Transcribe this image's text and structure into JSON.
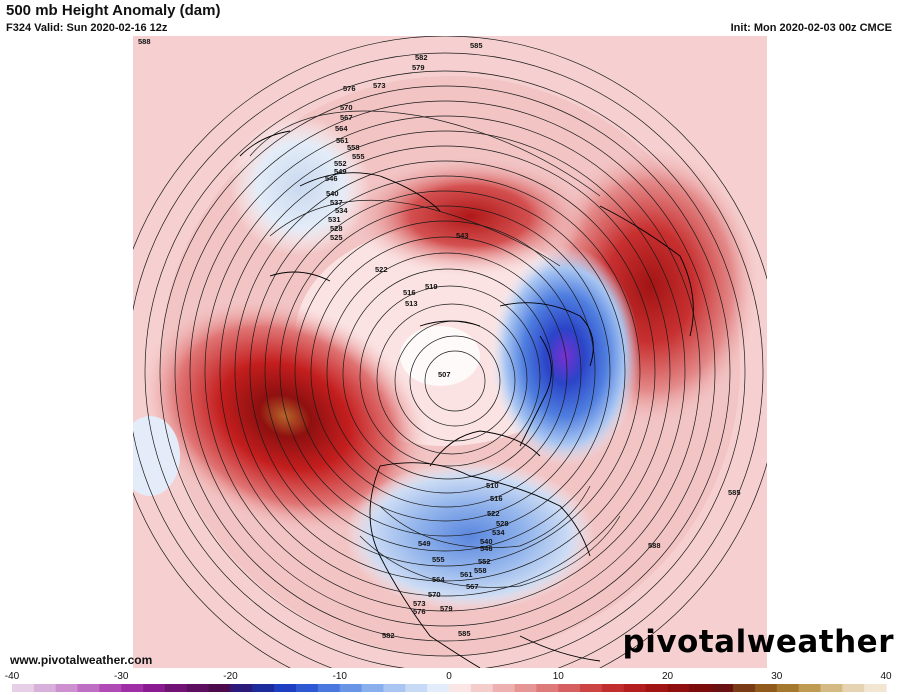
{
  "header": {
    "title": "500 mb Height Anomaly (dam)",
    "valid": "F324 Valid: Sun 2020-02-16 12z",
    "init": "Init: Mon 2020-02-03 00z CMCE"
  },
  "footer": {
    "url": "www.pivotalweather.com",
    "brand": "pivotalweather"
  },
  "colors": {
    "background_positive": "#f7d3d3",
    "strong_positive": "#c41e1e",
    "peak_positive": "#b5652a",
    "negative_light": "#c8d8ec",
    "negative_strong": "#1f3fc2",
    "negative_peak": "#7a2fd0"
  },
  "contour_labels": [
    "588",
    "585",
    "582",
    "579",
    "576",
    "573",
    "570",
    "567",
    "564",
    "561",
    "558",
    "555",
    "552",
    "549",
    "546",
    "540",
    "537",
    "534",
    "531",
    "528",
    "525",
    "522",
    "543",
    "519",
    "516",
    "513",
    "507",
    "510",
    "585",
    "588",
    "579",
    "576",
    "573",
    "570",
    "567",
    "564",
    "561",
    "558",
    "555",
    "549",
    "546",
    "552",
    "540",
    "534",
    "528",
    "522",
    "516",
    "510",
    "585",
    "582"
  ],
  "colorbar": {
    "ticks": [
      "-40",
      "-30",
      "-20",
      "-10",
      "0",
      "10",
      "20",
      "30",
      "40"
    ],
    "colors": [
      "#e8cfe8",
      "#d9b0dc",
      "#cc8fcf",
      "#bf6fc3",
      "#b04bb5",
      "#a02ea7",
      "#8a1a8f",
      "#701374",
      "#5c0f5e",
      "#4a0b4d",
      "#2c1a7a",
      "#1d2c9c",
      "#1f3fc2",
      "#2f59d3",
      "#4a78de",
      "#6a95e6",
      "#8aafed",
      "#a9c6f2",
      "#c6daf6",
      "#e2ecfa",
      "#fbe6e6",
      "#f5cdcd",
      "#eeb1b1",
      "#e69595",
      "#de7a7a",
      "#d65f5f",
      "#cc4444",
      "#c12e2e",
      "#b31d1d",
      "#a11414",
      "#8f0f0f",
      "#7c0c0c",
      "#6a1212",
      "#7a3a16",
      "#8f5a1c",
      "#a5792d",
      "#bf9a52",
      "#d4b983",
      "#e6d3b1",
      "#f2e6d3"
    ]
  }
}
